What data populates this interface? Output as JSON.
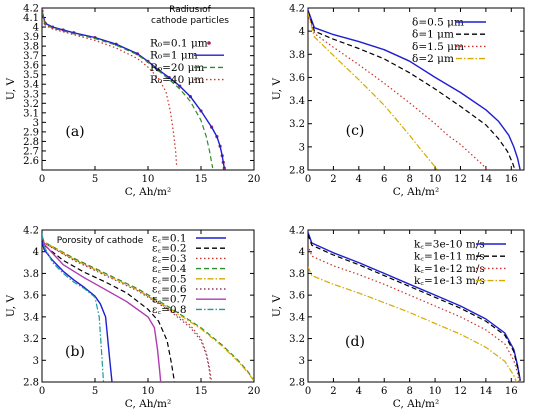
{
  "chart_data": [
    {
      "panel_tag": "(a)",
      "type": "line",
      "xlabel": "C, Ah/m²",
      "ylabel": "U, V",
      "xlim": [
        0,
        20
      ],
      "ylim": [
        2.5,
        4.2
      ],
      "xticks": [
        0,
        5,
        10,
        15,
        20
      ],
      "yticks": [
        2.6,
        2.7,
        2.8,
        2.9,
        3,
        3.1,
        3.2,
        3.3,
        3.4,
        3.5,
        3.6,
        3.7,
        3.8,
        3.9,
        4,
        4.1,
        4.2
      ],
      "legend_title": "Radius of\ncathode particles",
      "legend_position": "top-right",
      "series": [
        {
          "name": "R₀=0.1 μm",
          "color": "#9e2a5e",
          "style": "dots",
          "x": [
            0,
            0.3,
            1,
            2,
            3,
            5,
            7,
            9,
            10,
            11,
            12,
            13,
            14,
            15,
            16,
            16.5,
            16.8,
            17,
            17.1,
            17.2
          ],
          "y": [
            4.17,
            4.04,
            4.0,
            3.97,
            3.94,
            3.89,
            3.82,
            3.72,
            3.64,
            3.55,
            3.47,
            3.38,
            3.27,
            3.12,
            2.95,
            2.85,
            2.75,
            2.65,
            2.58,
            2.52
          ]
        },
        {
          "name": "R₀=1 μm",
          "color": "#1f1fd0",
          "style": "solid",
          "x": [
            0,
            0.3,
            1,
            2,
            3,
            5,
            7,
            9,
            10,
            11,
            12,
            13,
            14,
            15,
            16,
            16.5,
            16.8,
            17,
            17.1,
            17.2
          ],
          "y": [
            4.17,
            4.04,
            4.0,
            3.97,
            3.94,
            3.89,
            3.82,
            3.72,
            3.64,
            3.55,
            3.47,
            3.38,
            3.27,
            3.12,
            2.95,
            2.85,
            2.75,
            2.65,
            2.58,
            2.52
          ]
        },
        {
          "name": "R₀=20 μm",
          "color": "#2e8b2e",
          "style": "dash",
          "x": [
            0,
            0.3,
            1,
            2,
            3,
            5,
            7,
            9,
            10,
            11,
            12,
            13,
            14,
            15,
            15.5,
            15.8,
            16,
            16.1
          ],
          "y": [
            4.16,
            4.03,
            3.99,
            3.96,
            3.93,
            3.88,
            3.81,
            3.71,
            3.63,
            3.54,
            3.45,
            3.35,
            3.22,
            3.02,
            2.85,
            2.7,
            2.58,
            2.52
          ]
        },
        {
          "name": "R₀=40 μm",
          "color": "#c8322a",
          "style": "dot",
          "x": [
            0,
            0.3,
            1,
            2,
            3,
            5,
            7,
            9,
            10,
            11,
            11.7,
            12.1,
            12.4,
            12.6,
            12.7
          ],
          "y": [
            4.15,
            4.02,
            3.98,
            3.95,
            3.92,
            3.86,
            3.78,
            3.67,
            3.58,
            3.46,
            3.32,
            3.12,
            2.9,
            2.7,
            2.55
          ]
        }
      ]
    },
    {
      "panel_tag": "(c)",
      "type": "line",
      "xlabel": "C, Ah/m²",
      "ylabel": "U, V",
      "xlim": [
        0,
        17
      ],
      "ylim": [
        2.8,
        4.2
      ],
      "xticks": [
        0,
        2,
        4,
        6,
        8,
        10,
        12,
        14,
        16
      ],
      "yticks": [
        2.8,
        3,
        3.2,
        3.4,
        3.6,
        3.8,
        4,
        4.2
      ],
      "legend_position": "top-right",
      "series": [
        {
          "name": "δ=0.5 μm",
          "color": "#1f1fd0",
          "style": "solid",
          "x": [
            0,
            0.5,
            2,
            4,
            6,
            8,
            10,
            12,
            14,
            15,
            15.8,
            16.2,
            16.5,
            16.7
          ],
          "y": [
            4.18,
            4.03,
            3.97,
            3.91,
            3.84,
            3.74,
            3.6,
            3.47,
            3.32,
            3.22,
            3.1,
            3.0,
            2.9,
            2.8
          ]
        },
        {
          "name": "δ=1 μm",
          "color": "#000000",
          "style": "dash",
          "x": [
            0,
            0.5,
            2,
            4,
            6,
            8,
            10,
            12,
            14,
            15,
            15.7,
            16.1,
            16.3
          ],
          "y": [
            4.17,
            4.0,
            3.93,
            3.85,
            3.76,
            3.64,
            3.5,
            3.35,
            3.19,
            3.07,
            2.96,
            2.86,
            2.8
          ]
        },
        {
          "name": "δ=1.5 μm",
          "color": "#c8322a",
          "style": "dot",
          "x": [
            0,
            0.5,
            2,
            4,
            6,
            8,
            10,
            11,
            12,
            13,
            13.7,
            14.1
          ],
          "y": [
            4.16,
            3.98,
            3.86,
            3.71,
            3.55,
            3.38,
            3.2,
            3.1,
            3.02,
            2.92,
            2.85,
            2.8
          ]
        },
        {
          "name": "δ=2 μm",
          "color": "#d4aa00",
          "style": "dashdot",
          "x": [
            0,
            0.5,
            2,
            4,
            6,
            7,
            8,
            9,
            9.6,
            10.2
          ],
          "y": [
            4.15,
            3.95,
            3.79,
            3.58,
            3.36,
            3.23,
            3.1,
            2.96,
            2.88,
            2.8
          ]
        }
      ]
    },
    {
      "panel_tag": "(b)",
      "type": "line",
      "xlabel": "C, Ah/m²",
      "ylabel": "U, V",
      "xlim": [
        0,
        20
      ],
      "ylim": [
        2.8,
        4.2
      ],
      "xticks": [
        0,
        5,
        10,
        15,
        20
      ],
      "yticks": [
        2.8,
        3,
        3.2,
        3.4,
        3.6,
        3.8,
        4,
        4.2
      ],
      "legend_title": "Porosity of cathode",
      "legend_position": "top-right",
      "series": [
        {
          "name": "ε꜀=0.1",
          "color": "#1f1fd0",
          "style": "solid",
          "x": [
            0,
            0.2,
            1,
            2,
            3,
            4,
            5,
            5.5,
            6,
            6.2,
            6.4,
            6.6
          ],
          "y": [
            4.1,
            4.02,
            3.92,
            3.82,
            3.74,
            3.67,
            3.59,
            3.52,
            3.4,
            3.2,
            3.0,
            2.8
          ]
        },
        {
          "name": "ε꜀=0.2",
          "color": "#000000",
          "style": "dash",
          "x": [
            0,
            0.2,
            2,
            4,
            6,
            8,
            10,
            11,
            11.8,
            12.2,
            12.5
          ],
          "y": [
            4.12,
            4.06,
            3.92,
            3.81,
            3.72,
            3.62,
            3.47,
            3.36,
            3.18,
            2.98,
            2.8
          ]
        },
        {
          "name": "ε꜀=0.3",
          "color": "#c8322a",
          "style": "dot",
          "x": [
            0,
            0.2,
            3,
            6,
            9,
            12,
            14,
            15,
            15.5,
            15.8,
            16
          ],
          "y": [
            4.13,
            4.08,
            3.93,
            3.79,
            3.65,
            3.47,
            3.32,
            3.2,
            3.07,
            2.93,
            2.8
          ]
        },
        {
          "name": "ε꜀=0.4",
          "color": "#2e8b2e",
          "style": "dash",
          "x": [
            0,
            0.2,
            3,
            6,
            9,
            12,
            15,
            17,
            18.5,
            19.4,
            20
          ],
          "y": [
            4.14,
            4.09,
            3.94,
            3.8,
            3.66,
            3.49,
            3.3,
            3.14,
            3.0,
            2.9,
            2.81
          ]
        },
        {
          "name": "ε꜀=0.5",
          "color": "#d4aa00",
          "style": "dashdot",
          "x": [
            0,
            0.2,
            3,
            6,
            9,
            12,
            15,
            17,
            18.5,
            19.4,
            20
          ],
          "y": [
            4.14,
            4.09,
            3.93,
            3.79,
            3.65,
            3.48,
            3.29,
            3.13,
            2.99,
            2.89,
            2.81
          ]
        },
        {
          "name": "ε꜀=0.6",
          "color": "#8b3a62",
          "style": "dot",
          "x": [
            0,
            0.2,
            3,
            6,
            9,
            12,
            14,
            15,
            15.5,
            15.8,
            15.9
          ],
          "y": [
            4.15,
            4.08,
            3.92,
            3.78,
            3.64,
            3.46,
            3.3,
            3.18,
            3.05,
            2.9,
            2.8
          ]
        },
        {
          "name": "ε꜀=0.7",
          "color": "#b03ab0",
          "style": "solid",
          "x": [
            0,
            0.2,
            2,
            4,
            6,
            8,
            10,
            10.6,
            10.9,
            11.1,
            11.2
          ],
          "y": [
            4.15,
            4.07,
            3.88,
            3.76,
            3.65,
            3.54,
            3.4,
            3.3,
            3.1,
            2.9,
            2.8
          ]
        },
        {
          "name": "ε꜀=0.8",
          "color": "#1f9a9a",
          "style": "dashdot",
          "x": [
            0,
            0.2,
            1,
            2,
            3,
            4,
            5,
            5.4,
            5.6,
            5.8
          ],
          "y": [
            4.16,
            4.05,
            3.9,
            3.8,
            3.72,
            3.66,
            3.58,
            3.4,
            3.1,
            2.8
          ]
        }
      ]
    },
    {
      "panel_tag": "(d)",
      "type": "line",
      "xlabel": "C, Ah/m²",
      "ylabel": "U, V",
      "xlim": [
        0,
        17
      ],
      "ylim": [
        2.8,
        4.2
      ],
      "xticks": [
        0,
        2,
        4,
        6,
        8,
        10,
        12,
        14,
        16
      ],
      "yticks": [
        2.8,
        3,
        3.2,
        3.4,
        3.6,
        3.8,
        4,
        4.2
      ],
      "legend_position": "top-right",
      "series": [
        {
          "name": "k꜀=3e-10 m/s",
          "color": "#1f1fd0",
          "style": "solid",
          "x": [
            0,
            0.3,
            2,
            4,
            6,
            8,
            10,
            12,
            14,
            15.5,
            16.2,
            16.5,
            16.7
          ],
          "y": [
            4.18,
            4.08,
            3.99,
            3.9,
            3.8,
            3.7,
            3.6,
            3.5,
            3.38,
            3.25,
            3.1,
            2.95,
            2.82
          ]
        },
        {
          "name": "k꜀=1e-11 m/s",
          "color": "#000000",
          "style": "dash",
          "x": [
            0,
            0.3,
            2,
            4,
            6,
            8,
            10,
            12,
            14,
            15.5,
            16.2,
            16.5,
            16.7
          ],
          "y": [
            4.16,
            4.06,
            3.97,
            3.88,
            3.78,
            3.68,
            3.58,
            3.48,
            3.36,
            3.23,
            3.08,
            2.93,
            2.81
          ]
        },
        {
          "name": "k꜀=1e-12 m/s",
          "color": "#c8322a",
          "style": "dot",
          "x": [
            0,
            0.3,
            2,
            4,
            6,
            8,
            10,
            12,
            14,
            15.5,
            16.2,
            16.5,
            16.6
          ],
          "y": [
            4.06,
            3.96,
            3.87,
            3.79,
            3.7,
            3.6,
            3.5,
            3.4,
            3.28,
            3.15,
            3.0,
            2.88,
            2.8
          ]
        },
        {
          "name": "k꜀=1e-13 m/s",
          "color": "#d4aa00",
          "style": "dashdot",
          "x": [
            0,
            0.3,
            2,
            4,
            6,
            8,
            10,
            12,
            14,
            15.5,
            16.2,
            16.4
          ],
          "y": [
            3.86,
            3.78,
            3.7,
            3.62,
            3.53,
            3.44,
            3.34,
            3.24,
            3.12,
            2.99,
            2.86,
            2.8
          ]
        }
      ]
    }
  ]
}
